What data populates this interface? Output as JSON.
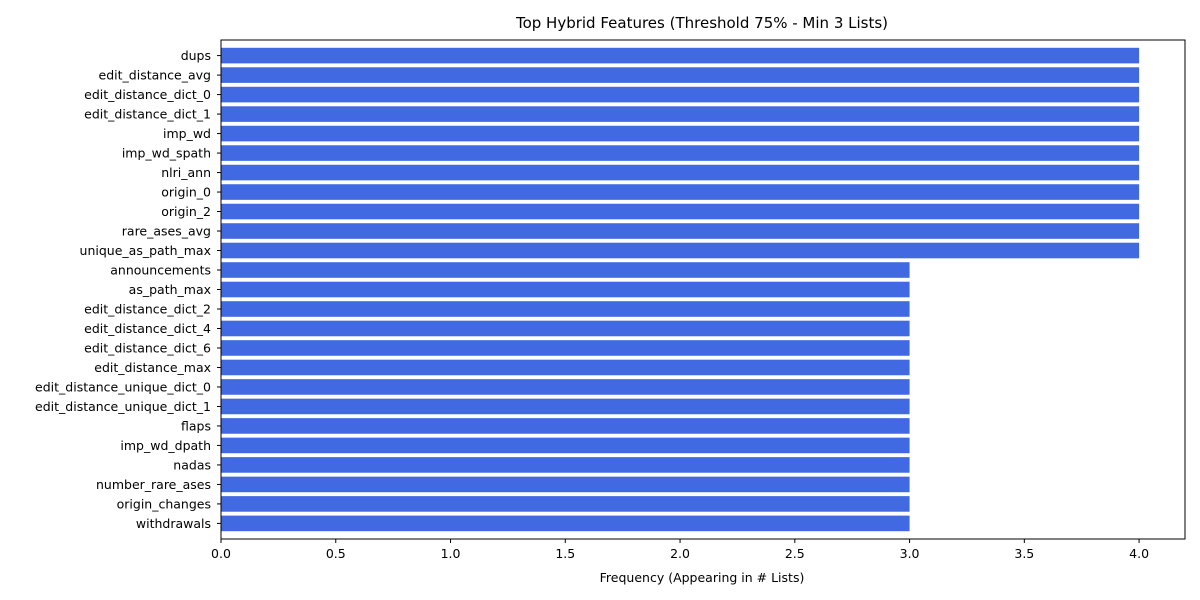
{
  "chart_data": {
    "type": "bar",
    "orientation": "horizontal",
    "title": "Top Hybrid Features (Threshold 75% - Min 3 Lists)",
    "xlabel": "Frequency (Appearing in # Lists)",
    "ylabel": "",
    "xlim": [
      0,
      4.2
    ],
    "xticks": [
      0.0,
      0.5,
      1.0,
      1.5,
      2.0,
      2.5,
      3.0,
      3.5,
      4.0
    ],
    "xtick_labels": [
      "0.0",
      "0.5",
      "1.0",
      "1.5",
      "2.0",
      "2.5",
      "3.0",
      "3.5",
      "4.0"
    ],
    "grid": false,
    "bar_color": "#4169E1",
    "categories": [
      "dups",
      "edit_distance_avg",
      "edit_distance_dict_0",
      "edit_distance_dict_1",
      "imp_wd",
      "imp_wd_spath",
      "nlri_ann",
      "origin_0",
      "origin_2",
      "rare_ases_avg",
      "unique_as_path_max",
      "announcements",
      "as_path_max",
      "edit_distance_dict_2",
      "edit_distance_dict_4",
      "edit_distance_dict_6",
      "edit_distance_max",
      "edit_distance_unique_dict_0",
      "edit_distance_unique_dict_1",
      "flaps",
      "imp_wd_dpath",
      "nadas",
      "number_rare_ases",
      "origin_changes",
      "withdrawals"
    ],
    "values": [
      4,
      4,
      4,
      4,
      4,
      4,
      4,
      4,
      4,
      4,
      4,
      3,
      3,
      3,
      3,
      3,
      3,
      3,
      3,
      3,
      3,
      3,
      3,
      3,
      3
    ]
  }
}
